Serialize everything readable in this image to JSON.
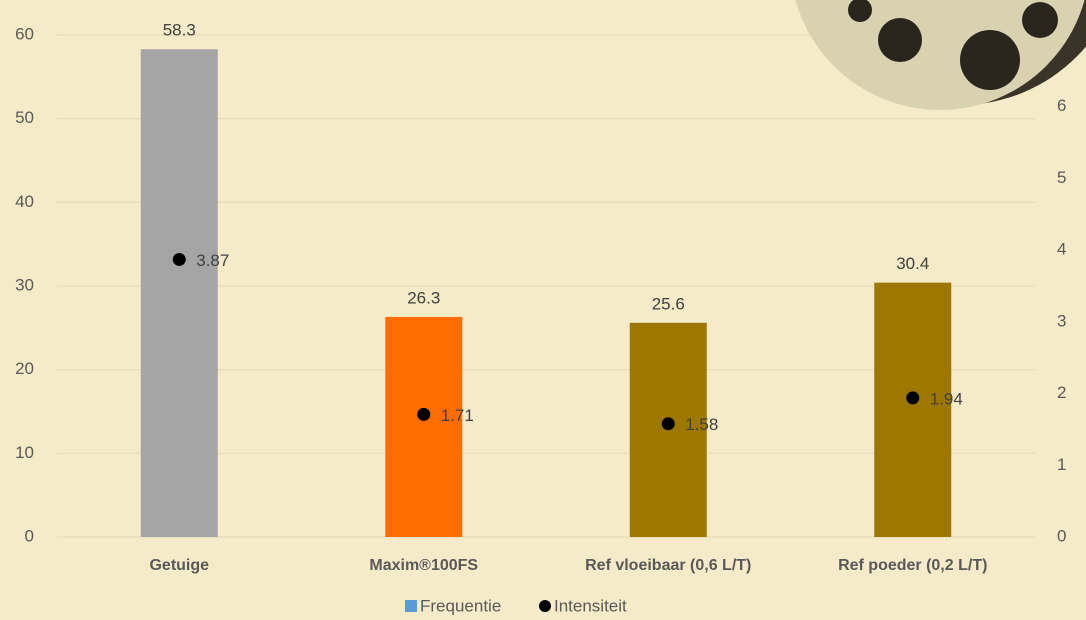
{
  "chart_data": {
    "type": "bar",
    "categories": [
      "Getuige",
      "Maxim®100FS",
      "Ref vloeibaar (0,6 L/T)",
      "Ref poeder  (0,2 L/T)"
    ],
    "series": [
      {
        "name": "Frequentie",
        "color": "#5b9bd5",
        "colors": [
          "#a5a5a5",
          "#ff6d00",
          "#9e7700",
          "#9e7700"
        ],
        "values": [
          58.3,
          26.3,
          25.6,
          30.4
        ]
      },
      {
        "name": "Intensiteit",
        "color": "#000000",
        "axis": "y2",
        "values": [
          3.87,
          1.71,
          1.58,
          1.94
        ]
      }
    ],
    "ylim": [
      0,
      60
    ],
    "yticks": [
      0,
      10,
      20,
      30,
      40,
      50,
      60
    ],
    "y2lim": [
      0,
      7
    ],
    "y2ticks": [
      0,
      1,
      2,
      3,
      4,
      5,
      6
    ],
    "grid": true,
    "legend": "bottom"
  }
}
